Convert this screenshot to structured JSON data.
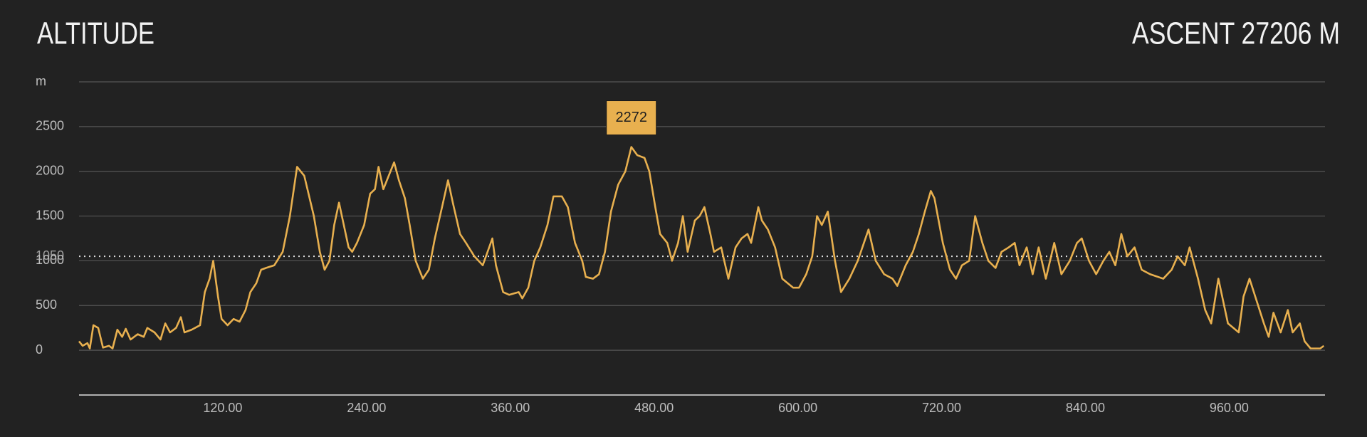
{
  "chart_data": {
    "type": "line",
    "title": "ALTITUDE",
    "subtitle": "ASCENT 27206 M",
    "y_unit": "m",
    "color": "#e8b04f",
    "x": [
      0,
      3,
      7,
      9,
      12,
      16,
      20,
      25,
      28,
      32,
      36,
      39,
      43,
      49,
      54,
      57,
      63,
      68,
      72,
      76,
      81,
      85,
      88,
      94,
      101,
      105,
      109,
      112,
      116,
      119,
      124,
      129,
      134,
      139,
      143,
      148,
      152,
      156,
      163,
      170,
      176,
      182,
      188,
      196,
      201,
      205,
      209,
      213,
      217,
      221,
      225,
      228,
      232,
      238,
      243,
      247,
      250,
      254,
      257,
      263,
      267,
      272,
      276,
      281,
      287,
      292,
      297,
      303,
      308,
      312,
      318,
      323,
      330,
      337,
      345,
      348,
      354,
      359,
      367,
      370,
      375,
      380,
      385,
      391,
      396,
      403,
      408,
      414,
      420,
      423,
      429,
      434,
      439,
      444,
      450,
      456,
      461,
      466,
      472,
      476,
      481,
      485,
      491,
      495,
      500,
      504,
      508,
      514,
      518,
      522,
      527,
      530,
      536,
      542,
      548,
      553,
      558,
      561,
      567,
      570,
      575,
      581,
      587,
      596,
      601,
      607,
      612,
      616,
      620,
      625,
      631,
      636,
      643,
      650,
      659,
      665,
      672,
      679,
      683,
      690,
      696,
      701,
      706,
      711,
      714,
      721,
      727,
      732,
      737,
      743,
      748,
      754,
      759,
      765,
      770,
      776,
      781,
      785,
      791,
      796,
      801,
      807,
      814,
      820,
      827,
      833,
      837,
      843,
      849,
      855,
      860,
      865,
      870,
      875,
      881,
      887,
      894,
      905,
      912,
      917,
      923,
      927,
      934,
      940,
      945,
      951,
      955,
      959,
      968,
      972,
      977,
      983,
      989,
      993,
      997,
      1003,
      1009,
      1013,
      1019,
      1023,
      1028,
      1036,
      1039
    ],
    "series": [
      {
        "name": "Altitude",
        "color": "#e8b04f",
        "values": [
          100,
          50,
          80,
          20,
          280,
          250,
          30,
          50,
          20,
          230,
          150,
          240,
          120,
          180,
          150,
          250,
          200,
          120,
          300,
          200,
          250,
          370,
          200,
          230,
          280,
          650,
          800,
          1000,
          600,
          350,
          280,
          350,
          320,
          450,
          650,
          750,
          900,
          920,
          950,
          1100,
          1500,
          2050,
          1950,
          1500,
          1100,
          900,
          1000,
          1400,
          1650,
          1400,
          1150,
          1100,
          1200,
          1400,
          1750,
          1800,
          2050,
          1800,
          1900,
          2100,
          1900,
          1700,
          1400,
          1000,
          800,
          900,
          1250,
          1600,
          1900,
          1650,
          1300,
          1200,
          1050,
          950,
          1250,
          950,
          650,
          620,
          650,
          580,
          700,
          1000,
          1150,
          1400,
          1720,
          1720,
          1600,
          1200,
          1000,
          820,
          800,
          850,
          1100,
          1550,
          1850,
          2000,
          2272,
          2180,
          2150,
          2000,
          1600,
          1300,
          1200,
          1000,
          1200,
          1500,
          1100,
          1450,
          1500,
          1600,
          1300,
          1100,
          1150,
          800,
          1150,
          1250,
          1300,
          1200,
          1600,
          1450,
          1350,
          1150,
          800,
          700,
          700,
          850,
          1050,
          1500,
          1400,
          1550,
          1000,
          650,
          800,
          1000,
          1350,
          1000,
          850,
          800,
          720,
          950,
          1100,
          1300,
          1550,
          1780,
          1700,
          1200,
          900,
          800,
          950,
          1000,
          1500,
          1200,
          1000,
          920,
          1100,
          1150,
          1200,
          950,
          1150,
          850,
          1150,
          800,
          1200,
          850,
          1000,
          1200,
          1250,
          1000,
          850,
          1000,
          1100,
          950,
          1300,
          1050,
          1150,
          900,
          850,
          800,
          900,
          1050,
          950,
          1150,
          800,
          450,
          300,
          800,
          550,
          300,
          200,
          600,
          800,
          550,
          300,
          150,
          420,
          200,
          450,
          200,
          300,
          100,
          20,
          20,
          50
        ]
      }
    ],
    "reference_line": 1050,
    "xlim": [
      0,
      1040
    ],
    "xticks": [
      {
        "value": 120,
        "label": "120.00"
      },
      {
        "value": 240,
        "label": "240.00"
      },
      {
        "value": 360,
        "label": "360.00"
      },
      {
        "value": 480,
        "label": "480.00"
      },
      {
        "value": 600,
        "label": "600.00"
      },
      {
        "value": 720,
        "label": "720.00"
      },
      {
        "value": 840,
        "label": "840.00"
      },
      {
        "value": 960,
        "label": "960.00"
      }
    ],
    "ylim": [
      -500,
      3000
    ],
    "yticks": [
      0,
      500,
      1000,
      1500,
      2000,
      2500
    ],
    "grid": true
  }
}
